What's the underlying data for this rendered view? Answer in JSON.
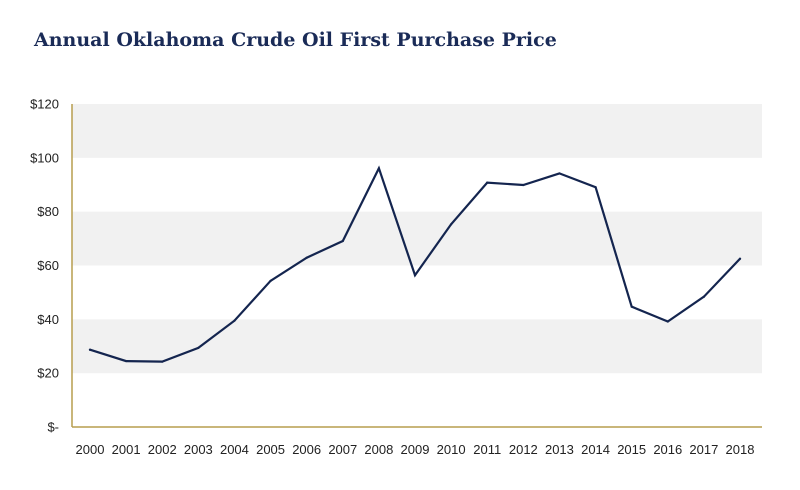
{
  "chart_data": {
    "type": "line",
    "title": "Annual Oklahoma Crude Oil First Purchase Price",
    "xlabel": "",
    "ylabel": "",
    "categories": [
      "2000",
      "2001",
      "2002",
      "2003",
      "2004",
      "2005",
      "2006",
      "2007",
      "2008",
      "2009",
      "2010",
      "2011",
      "2012",
      "2013",
      "2014",
      "2015",
      "2016",
      "2017",
      "2018"
    ],
    "series": [
      {
        "name": "Oklahoma Crude Oil First Purchase Price",
        "values": [
          28.7,
          24.5,
          24.3,
          29.4,
          39.5,
          54.3,
          62.9,
          69.1,
          96.1,
          56.4,
          75.3,
          90.8,
          89.9,
          94.2,
          89.1,
          44.7,
          39.2,
          48.4,
          62.5
        ]
      }
    ],
    "ylim": [
      0,
      120
    ],
    "yticks": [
      0,
      20,
      40,
      60,
      80,
      100,
      120
    ],
    "ytick_labels": [
      "$-",
      "$20",
      "$40",
      "$60",
      "$80",
      "$100",
      "$120"
    ],
    "grid": "alternating horizontal bands",
    "legend": "none",
    "colors": {
      "line": "#14254f",
      "band": "#f1f1f1",
      "axis": "#b79d4f",
      "title": "#1a2b57"
    }
  }
}
